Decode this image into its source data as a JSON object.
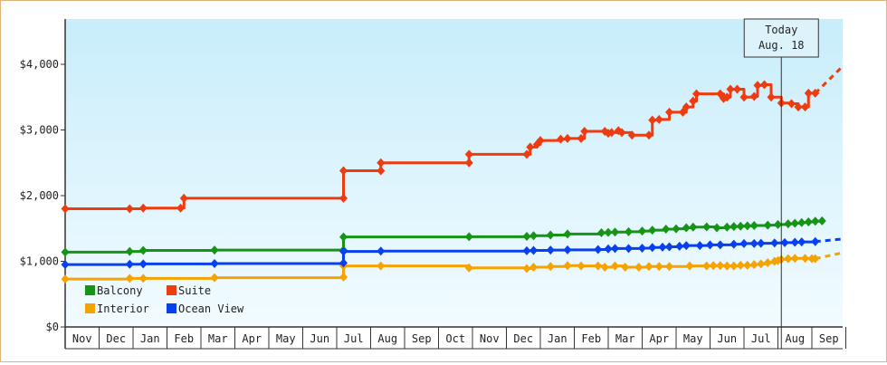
{
  "chart_data": {
    "type": "line",
    "title": "",
    "xlabel": "",
    "ylabel": "",
    "ylim": [
      0,
      4000
    ],
    "y_ticks": [
      {
        "value": 0,
        "label": "$0"
      },
      {
        "value": 1000,
        "label": "$1,000"
      },
      {
        "value": 2000,
        "label": "$2,000"
      },
      {
        "value": 3000,
        "label": "$3,000"
      },
      {
        "value": 4000,
        "label": "$4,000"
      }
    ],
    "x_labels": [
      "Nov",
      "Dec",
      "Jan",
      "Feb",
      "Mar",
      "Apr",
      "May",
      "Jun",
      "Jul",
      "Aug",
      "Sep",
      "Oct",
      "Nov",
      "Dec",
      "Jan",
      "Feb",
      "Mar",
      "Apr",
      "May",
      "Jun",
      "Jul",
      "Aug",
      "Sep"
    ],
    "x_range": [
      0,
      23
    ],
    "grid": false,
    "legend_position": "bottom-left",
    "today_marker": {
      "x": 21.1,
      "line1": "Today",
      "line2": "Aug. 18"
    },
    "series": [
      {
        "name": "Balcony",
        "color": "#159415",
        "points": [
          [
            0,
            1140
          ],
          [
            1.9,
            1150
          ],
          [
            2.3,
            1165
          ],
          [
            4.4,
            1170
          ],
          [
            8.2,
            1170
          ],
          [
            8.2,
            1370
          ],
          [
            11.9,
            1375
          ],
          [
            13.6,
            1380
          ],
          [
            13.8,
            1390
          ],
          [
            14.3,
            1400
          ],
          [
            14.8,
            1415
          ],
          [
            15.8,
            1435
          ],
          [
            16.0,
            1440
          ],
          [
            16.2,
            1445
          ],
          [
            16.6,
            1450
          ],
          [
            17.0,
            1460
          ],
          [
            17.3,
            1475
          ],
          [
            17.7,
            1490
          ],
          [
            18.0,
            1495
          ],
          [
            18.3,
            1510
          ],
          [
            18.5,
            1520
          ],
          [
            18.9,
            1525
          ],
          [
            19.2,
            1510
          ],
          [
            19.5,
            1520
          ],
          [
            19.7,
            1530
          ],
          [
            19.9,
            1535
          ],
          [
            20.1,
            1540
          ],
          [
            20.3,
            1545
          ],
          [
            20.7,
            1550
          ],
          [
            21.0,
            1560
          ],
          [
            21.3,
            1570
          ],
          [
            21.5,
            1580
          ],
          [
            21.7,
            1590
          ],
          [
            21.9,
            1600
          ],
          [
            22.1,
            1610
          ],
          [
            22.3,
            1615
          ]
        ],
        "projection_end": null
      },
      {
        "name": "Suite",
        "color": "#ee3b0f",
        "points": [
          [
            0,
            1800
          ],
          [
            1.9,
            1800
          ],
          [
            2.3,
            1810
          ],
          [
            3.4,
            1810
          ],
          [
            3.5,
            1960
          ],
          [
            8.2,
            1960
          ],
          [
            8.2,
            2380
          ],
          [
            9.3,
            2380
          ],
          [
            9.3,
            2500
          ],
          [
            11.9,
            2500
          ],
          [
            11.9,
            2630
          ],
          [
            13.6,
            2630
          ],
          [
            13.7,
            2740
          ],
          [
            13.9,
            2780
          ],
          [
            14.0,
            2840
          ],
          [
            14.6,
            2860
          ],
          [
            14.8,
            2870
          ],
          [
            15.2,
            2870
          ],
          [
            15.3,
            2980
          ],
          [
            15.9,
            2980
          ],
          [
            16.0,
            2950
          ],
          [
            16.1,
            2960
          ],
          [
            16.3,
            2990
          ],
          [
            16.4,
            2960
          ],
          [
            16.7,
            2920
          ],
          [
            17.2,
            2920
          ],
          [
            17.3,
            3150
          ],
          [
            17.5,
            3160
          ],
          [
            17.8,
            3270
          ],
          [
            18.2,
            3270
          ],
          [
            18.3,
            3350
          ],
          [
            18.5,
            3440
          ],
          [
            18.6,
            3550
          ],
          [
            19.3,
            3550
          ],
          [
            19.4,
            3480
          ],
          [
            19.5,
            3500
          ],
          [
            19.6,
            3620
          ],
          [
            19.8,
            3620
          ],
          [
            20.0,
            3500
          ],
          [
            20.3,
            3510
          ],
          [
            20.4,
            3680
          ],
          [
            20.6,
            3690
          ],
          [
            20.8,
            3500
          ],
          [
            21.1,
            3410
          ],
          [
            21.4,
            3400
          ],
          [
            21.6,
            3350
          ],
          [
            21.8,
            3350
          ],
          [
            21.9,
            3560
          ],
          [
            22.1,
            3560
          ]
        ],
        "projection_end": [
          23.6,
          3970
        ]
      },
      {
        "name": "Interior",
        "color": "#f5a300",
        "points": [
          [
            0,
            730
          ],
          [
            1.9,
            740
          ],
          [
            2.3,
            740
          ],
          [
            4.4,
            750
          ],
          [
            8.2,
            760
          ],
          [
            8.2,
            930
          ],
          [
            9.3,
            930
          ],
          [
            11.9,
            900
          ],
          [
            13.6,
            890
          ],
          [
            13.8,
            910
          ],
          [
            14.3,
            920
          ],
          [
            14.8,
            935
          ],
          [
            15.2,
            930
          ],
          [
            15.7,
            930
          ],
          [
            15.9,
            910
          ],
          [
            16.2,
            930
          ],
          [
            16.5,
            910
          ],
          [
            16.9,
            910
          ],
          [
            17.2,
            920
          ],
          [
            17.5,
            920
          ],
          [
            17.8,
            920
          ],
          [
            18.4,
            930
          ],
          [
            18.9,
            930
          ],
          [
            19.1,
            935
          ],
          [
            19.3,
            935
          ],
          [
            19.5,
            930
          ],
          [
            19.7,
            930
          ],
          [
            19.9,
            940
          ],
          [
            20.1,
            940
          ],
          [
            20.3,
            950
          ],
          [
            20.5,
            960
          ],
          [
            20.7,
            980
          ],
          [
            20.9,
            1000
          ],
          [
            21.0,
            1010
          ],
          [
            21.1,
            1030
          ],
          [
            21.3,
            1040
          ],
          [
            21.5,
            1045
          ],
          [
            21.8,
            1045
          ],
          [
            22.0,
            1040
          ],
          [
            22.1,
            1040
          ]
        ],
        "projection_end": [
          23.6,
          1130
        ]
      },
      {
        "name": "Ocean View",
        "color": "#0840f0",
        "points": [
          [
            0,
            950
          ],
          [
            1.9,
            955
          ],
          [
            2.3,
            960
          ],
          [
            4.4,
            965
          ],
          [
            8.2,
            975
          ],
          [
            8.2,
            1150
          ],
          [
            9.3,
            1155
          ],
          [
            13.6,
            1160
          ],
          [
            13.8,
            1165
          ],
          [
            14.3,
            1170
          ],
          [
            14.8,
            1175
          ],
          [
            15.7,
            1180
          ],
          [
            16.0,
            1190
          ],
          [
            16.2,
            1195
          ],
          [
            16.6,
            1195
          ],
          [
            17.0,
            1200
          ],
          [
            17.3,
            1210
          ],
          [
            17.6,
            1215
          ],
          [
            17.8,
            1220
          ],
          [
            18.1,
            1230
          ],
          [
            18.3,
            1240
          ],
          [
            18.7,
            1240
          ],
          [
            19.0,
            1250
          ],
          [
            19.3,
            1250
          ],
          [
            19.7,
            1260
          ],
          [
            20.0,
            1270
          ],
          [
            20.3,
            1270
          ],
          [
            20.5,
            1275
          ],
          [
            20.9,
            1280
          ],
          [
            21.2,
            1285
          ],
          [
            21.5,
            1290
          ],
          [
            21.7,
            1295
          ],
          [
            22.1,
            1300
          ]
        ],
        "projection_end": [
          23.6,
          1340
        ]
      }
    ]
  }
}
